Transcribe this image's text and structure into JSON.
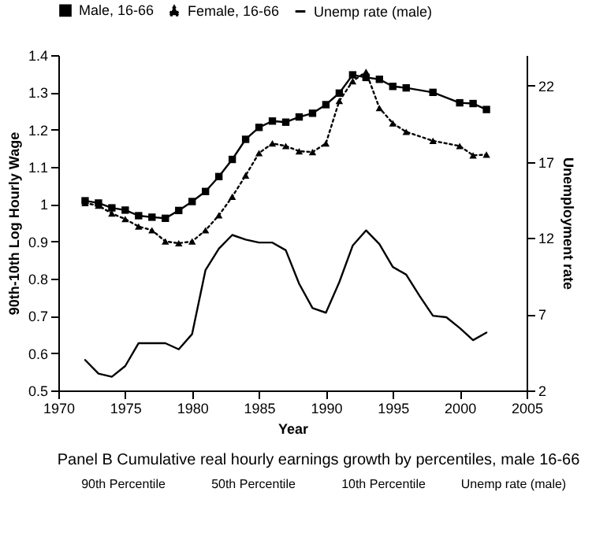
{
  "chart_data": [
    {
      "type": "line",
      "x": [
        1972,
        1973,
        1974,
        1975,
        1976,
        1977,
        1978,
        1979,
        1980,
        1981,
        1982,
        1983,
        1984,
        1985,
        1986,
        1987,
        1988,
        1989,
        1990,
        1991,
        1992,
        1993,
        1994,
        1995,
        1996,
        1997,
        1998,
        1999,
        2000,
        2001,
        2002
      ],
      "series": [
        {
          "name": "Male, 16-66",
          "color": "#000000",
          "line_style": "solid",
          "marker": "square",
          "values": [
            1.009,
            1.003,
            0.99,
            0.984,
            0.969,
            0.965,
            0.962,
            0.983,
            1.007,
            1.034,
            1.074,
            1.12,
            1.174,
            1.206,
            1.223,
            1.22,
            1.234,
            1.244,
            1.267,
            1.298,
            1.347,
            1.34,
            1.335,
            1.316,
            1.312,
            null,
            1.3,
            null,
            1.272,
            1.27,
            1.254
          ]
        },
        {
          "name": "Female, 16-66",
          "color": "#000000",
          "line_style": "dotted",
          "marker": "triangle",
          "values": [
            1.003,
            0.996,
            0.975,
            0.96,
            0.94,
            0.93,
            0.9,
            0.895,
            0.9,
            0.93,
            0.97,
            1.02,
            1.077,
            1.137,
            1.163,
            1.156,
            1.142,
            1.14,
            1.163,
            1.277,
            1.33,
            1.355,
            1.258,
            1.217,
            1.194,
            null,
            1.17,
            null,
            1.156,
            1.131,
            1.133
          ]
        },
        {
          "name": "Unemp rate (male)",
          "color": "#000000",
          "line_style": "solid",
          "marker": "none",
          "axis": "y2",
          "values": [
            4.0,
            3.1,
            2.9,
            3.6,
            5.1,
            5.1,
            5.1,
            4.7,
            5.7,
            9.9,
            11.3,
            12.2,
            11.9,
            11.7,
            11.7,
            11.2,
            9.0,
            7.4,
            7.1,
            9.1,
            11.5,
            12.5,
            11.6,
            10.1,
            9.6,
            8.2,
            6.9,
            6.8,
            6.1,
            5.3,
            5.8
          ]
        }
      ],
      "xlabel": "Year",
      "ylabel": "90th-10th Log Hourly Wage",
      "y2label": "Unemployment rate",
      "xlim": [
        1970,
        2005
      ],
      "xticks": [
        1970,
        1975,
        1980,
        1985,
        1990,
        1995,
        2000,
        2005
      ],
      "ylim": [
        0.5,
        1.4
      ],
      "yticks": [
        0.5,
        0.6,
        0.7,
        0.8,
        0.9,
        1,
        1.1,
        1.2,
        1.3,
        1.4
      ],
      "y2lim": [
        2,
        24
      ],
      "y2ticks": [
        2,
        7,
        12,
        17,
        22
      ],
      "legend": "top"
    },
    {
      "type": "other",
      "title": "Panel B Cumulative real hourly earnings growth by percentiles, male 16-66",
      "annotations": [
        "90th Percentile",
        "50th Percentile",
        "10th Percentile",
        "Unemp rate (male)"
      ]
    }
  ]
}
